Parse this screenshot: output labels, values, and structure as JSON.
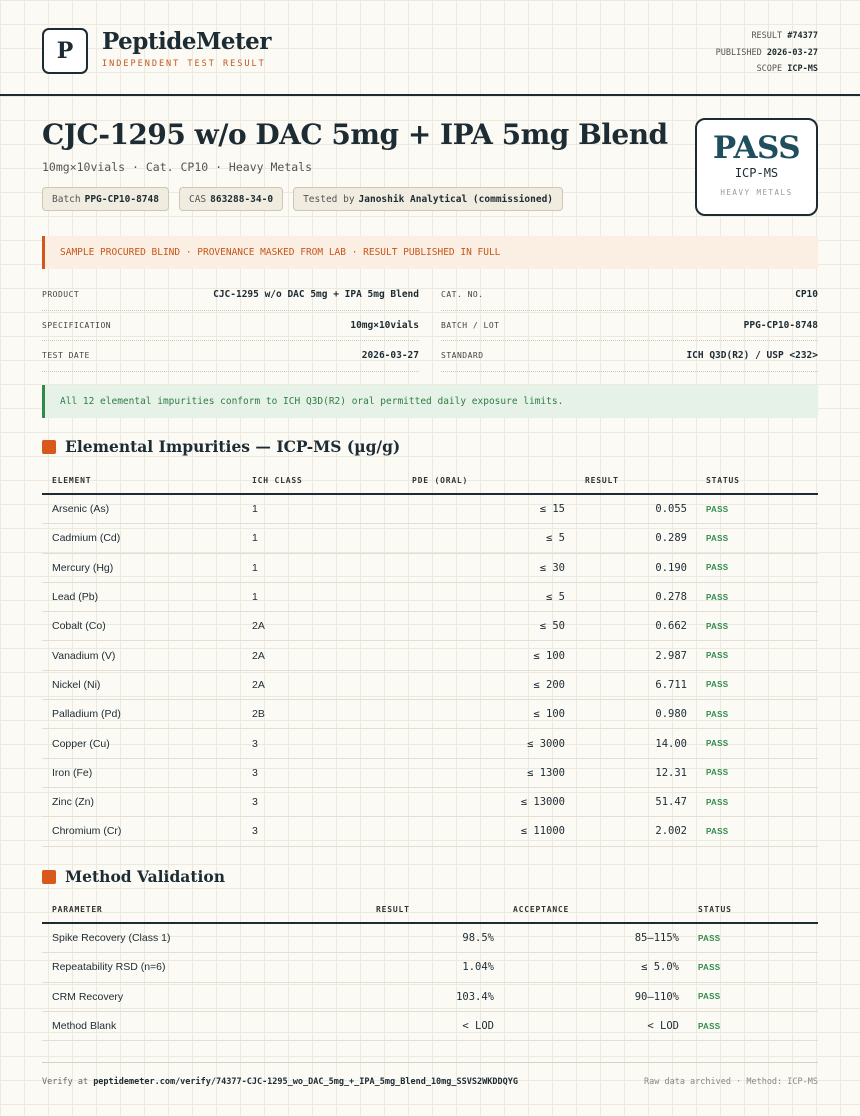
{
  "header": {
    "logo_letter": "P",
    "brand": "PeptideMeter",
    "tagline": "INDEPENDENT TEST RESULT",
    "meta": [
      {
        "label": "RESULT",
        "value": "#74377"
      },
      {
        "label": "PUBLISHED",
        "value": "2026-03-27"
      },
      {
        "label": "SCOPE",
        "value": "ICP-MS"
      }
    ]
  },
  "product": {
    "title": "CJC-1295 w/o DAC 5mg + IPA 5mg Blend",
    "subtitle": "10mg×10vials · Cat. CP10 · Heavy Metals",
    "chips": [
      {
        "label": "Batch",
        "value": "PPG-CP10-8748"
      },
      {
        "label": "CAS",
        "value": "863288-34-0"
      },
      {
        "label": "Tested by",
        "value": "Janoshik Analytical (commissioned)"
      }
    ]
  },
  "stamp": {
    "verdict": "PASS",
    "method": "ICP-MS",
    "scope": "HEAVY METALS"
  },
  "notice": "SAMPLE PROCURED BLIND · PROVENANCE MASKED FROM LAB · RESULT PUBLISHED IN FULL",
  "details": [
    {
      "label": "PRODUCT",
      "value": "CJC-1295 w/o DAC 5mg + IPA 5mg Blend"
    },
    {
      "label": "CAT. NO.",
      "value": "CP10"
    },
    {
      "label": "SPECIFICATION",
      "value": "10mg×10vials"
    },
    {
      "label": "BATCH / LOT",
      "value": "PPG-CP10-8748"
    },
    {
      "label": "TEST DATE",
      "value": "2026-03-27"
    },
    {
      "label": "STANDARD",
      "value": "ICH Q3D(R2) / USP <232>"
    }
  ],
  "conclusion": "All 12 elemental impurities conform to ICH Q3D(R2) oral permitted daily exposure limits.",
  "elemental": {
    "title": "Elemental Impurities — ICP-MS (µg/g)",
    "columns": [
      "ELEMENT",
      "ICH CLASS",
      "PDE (ORAL)",
      "RESULT",
      "STATUS"
    ],
    "rows": [
      [
        "Arsenic (As)",
        "1",
        "≤ 15",
        "0.055",
        "PASS"
      ],
      [
        "Cadmium (Cd)",
        "1",
        "≤ 5",
        "0.289",
        "PASS"
      ],
      [
        "Mercury (Hg)",
        "1",
        "≤ 30",
        "0.190",
        "PASS"
      ],
      [
        "Lead (Pb)",
        "1",
        "≤ 5",
        "0.278",
        "PASS"
      ],
      [
        "Cobalt (Co)",
        "2A",
        "≤ 50",
        "0.662",
        "PASS"
      ],
      [
        "Vanadium (V)",
        "2A",
        "≤ 100",
        "2.987",
        "PASS"
      ],
      [
        "Nickel (Ni)",
        "2A",
        "≤ 200",
        "6.711",
        "PASS"
      ],
      [
        "Palladium (Pd)",
        "2B",
        "≤ 100",
        "0.980",
        "PASS"
      ],
      [
        "Copper (Cu)",
        "3",
        "≤ 3000",
        "14.00",
        "PASS"
      ],
      [
        "Iron (Fe)",
        "3",
        "≤ 1300",
        "12.31",
        "PASS"
      ],
      [
        "Zinc (Zn)",
        "3",
        "≤ 13000",
        "51.47",
        "PASS"
      ],
      [
        "Chromium (Cr)",
        "3",
        "≤ 11000",
        "2.002",
        "PASS"
      ]
    ]
  },
  "validation": {
    "title": "Method Validation",
    "columns": [
      "PARAMETER",
      "RESULT",
      "ACCEPTANCE",
      "STATUS"
    ],
    "rows": [
      [
        "Spike Recovery (Class 1)",
        "98.5%",
        "85–115%",
        "PASS"
      ],
      [
        "Repeatability RSD (n=6)",
        "1.04%",
        "≤ 5.0%",
        "PASS"
      ],
      [
        "CRM Recovery",
        "103.4%",
        "90–110%",
        "PASS"
      ],
      [
        "Method Blank",
        "< LOD",
        "< LOD",
        "PASS"
      ]
    ]
  },
  "footer": {
    "verify_label": "Verify at",
    "verify_url": "peptidemeter.com/verify/74377-CJC-1295_wo_DAC_5mg_+_IPA_5mg_Blend_10mg_SSVS2WKDDQYG",
    "note": "Raw data archived · Method: ICP-MS"
  }
}
